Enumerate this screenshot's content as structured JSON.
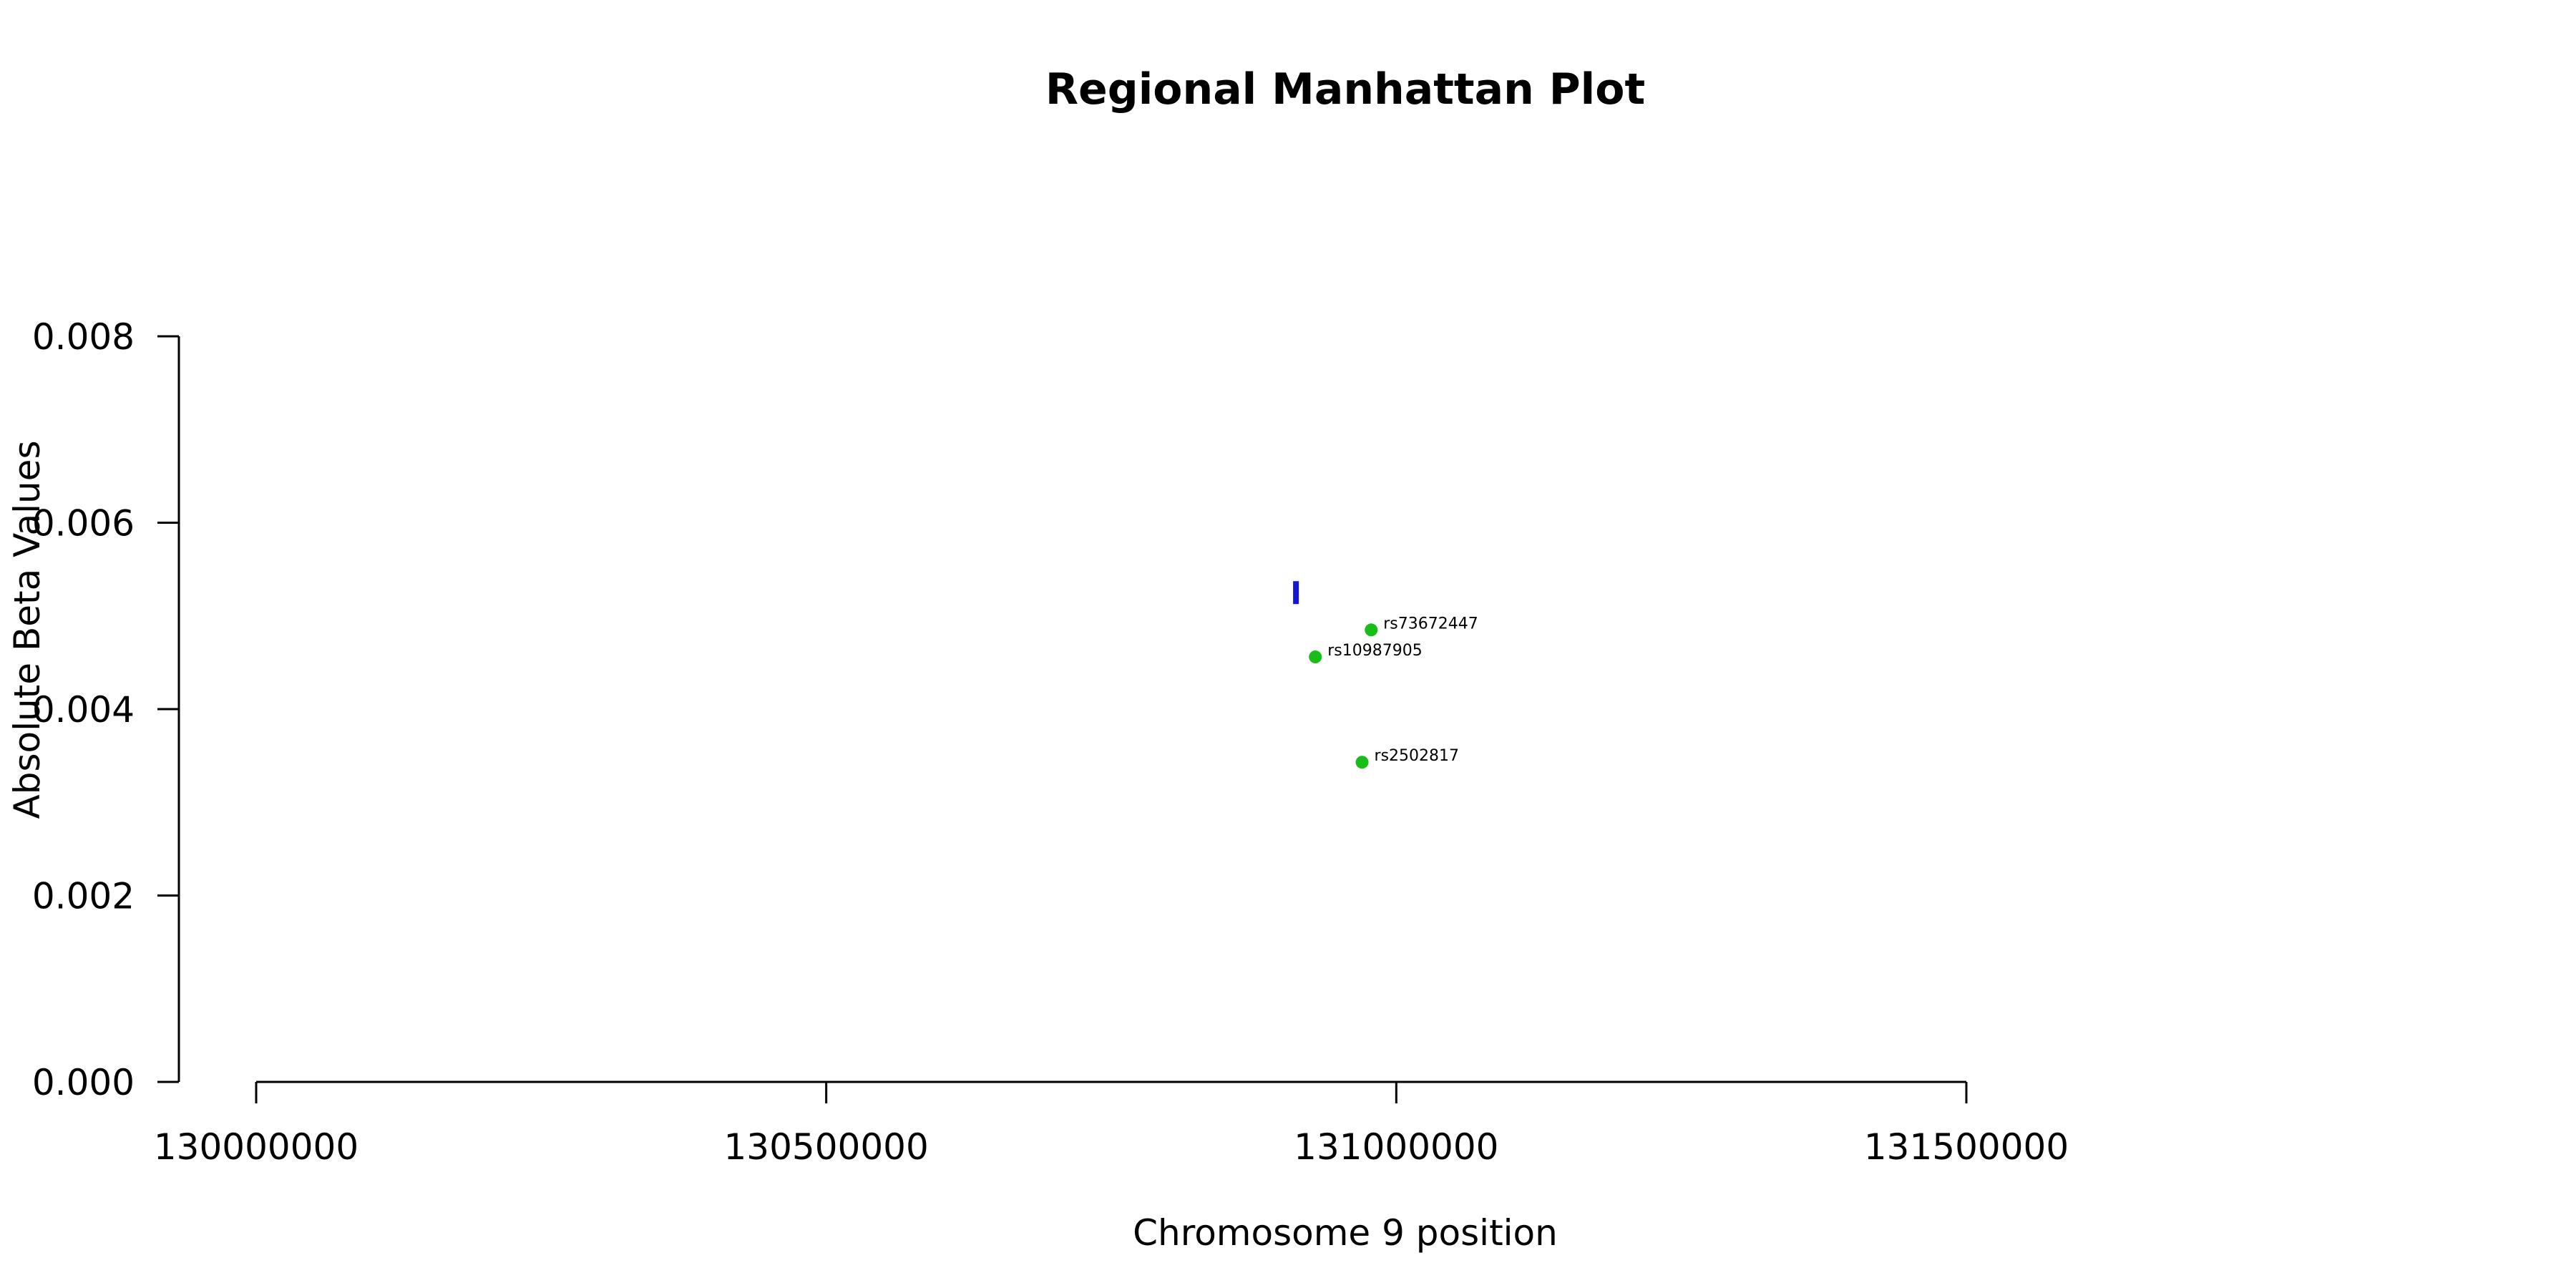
{
  "chart_data": {
    "type": "scatter",
    "title": "Regional Manhattan Plot",
    "xlabel": "Chromosome 9 position",
    "ylabel": "Absolute Beta Values",
    "xlim": [
      130000000,
      131500000
    ],
    "ylim": [
      0,
      0.008
    ],
    "x_ticks": [
      130000000,
      130500000,
      131000000,
      131500000
    ],
    "x_tick_labels": [
      "130000000",
      "130500000",
      "131000000",
      "131500000"
    ],
    "y_ticks": [
      0,
      0.002,
      0.004,
      0.006,
      0.008
    ],
    "y_tick_labels": [
      "0.000",
      "0.002",
      "0.004",
      "0.006",
      "0.008"
    ],
    "grid": false,
    "colors": {
      "highlight": "#1515d6",
      "snp": "#18bd18"
    },
    "series": [
      {
        "marker": "bar",
        "color": "#1515d6",
        "points": [
          {
            "x": 130912000,
            "y": 0.00525,
            "label": ""
          }
        ]
      },
      {
        "marker": "circle",
        "color": "#18bd18",
        "points": [
          {
            "x": 130978000,
            "y": 0.00485,
            "label": "rs73672447"
          },
          {
            "x": 130929000,
            "y": 0.00456,
            "label": "rs10987905"
          },
          {
            "x": 130970000,
            "y": 0.00343,
            "label": "rs2502817"
          }
        ]
      }
    ]
  }
}
